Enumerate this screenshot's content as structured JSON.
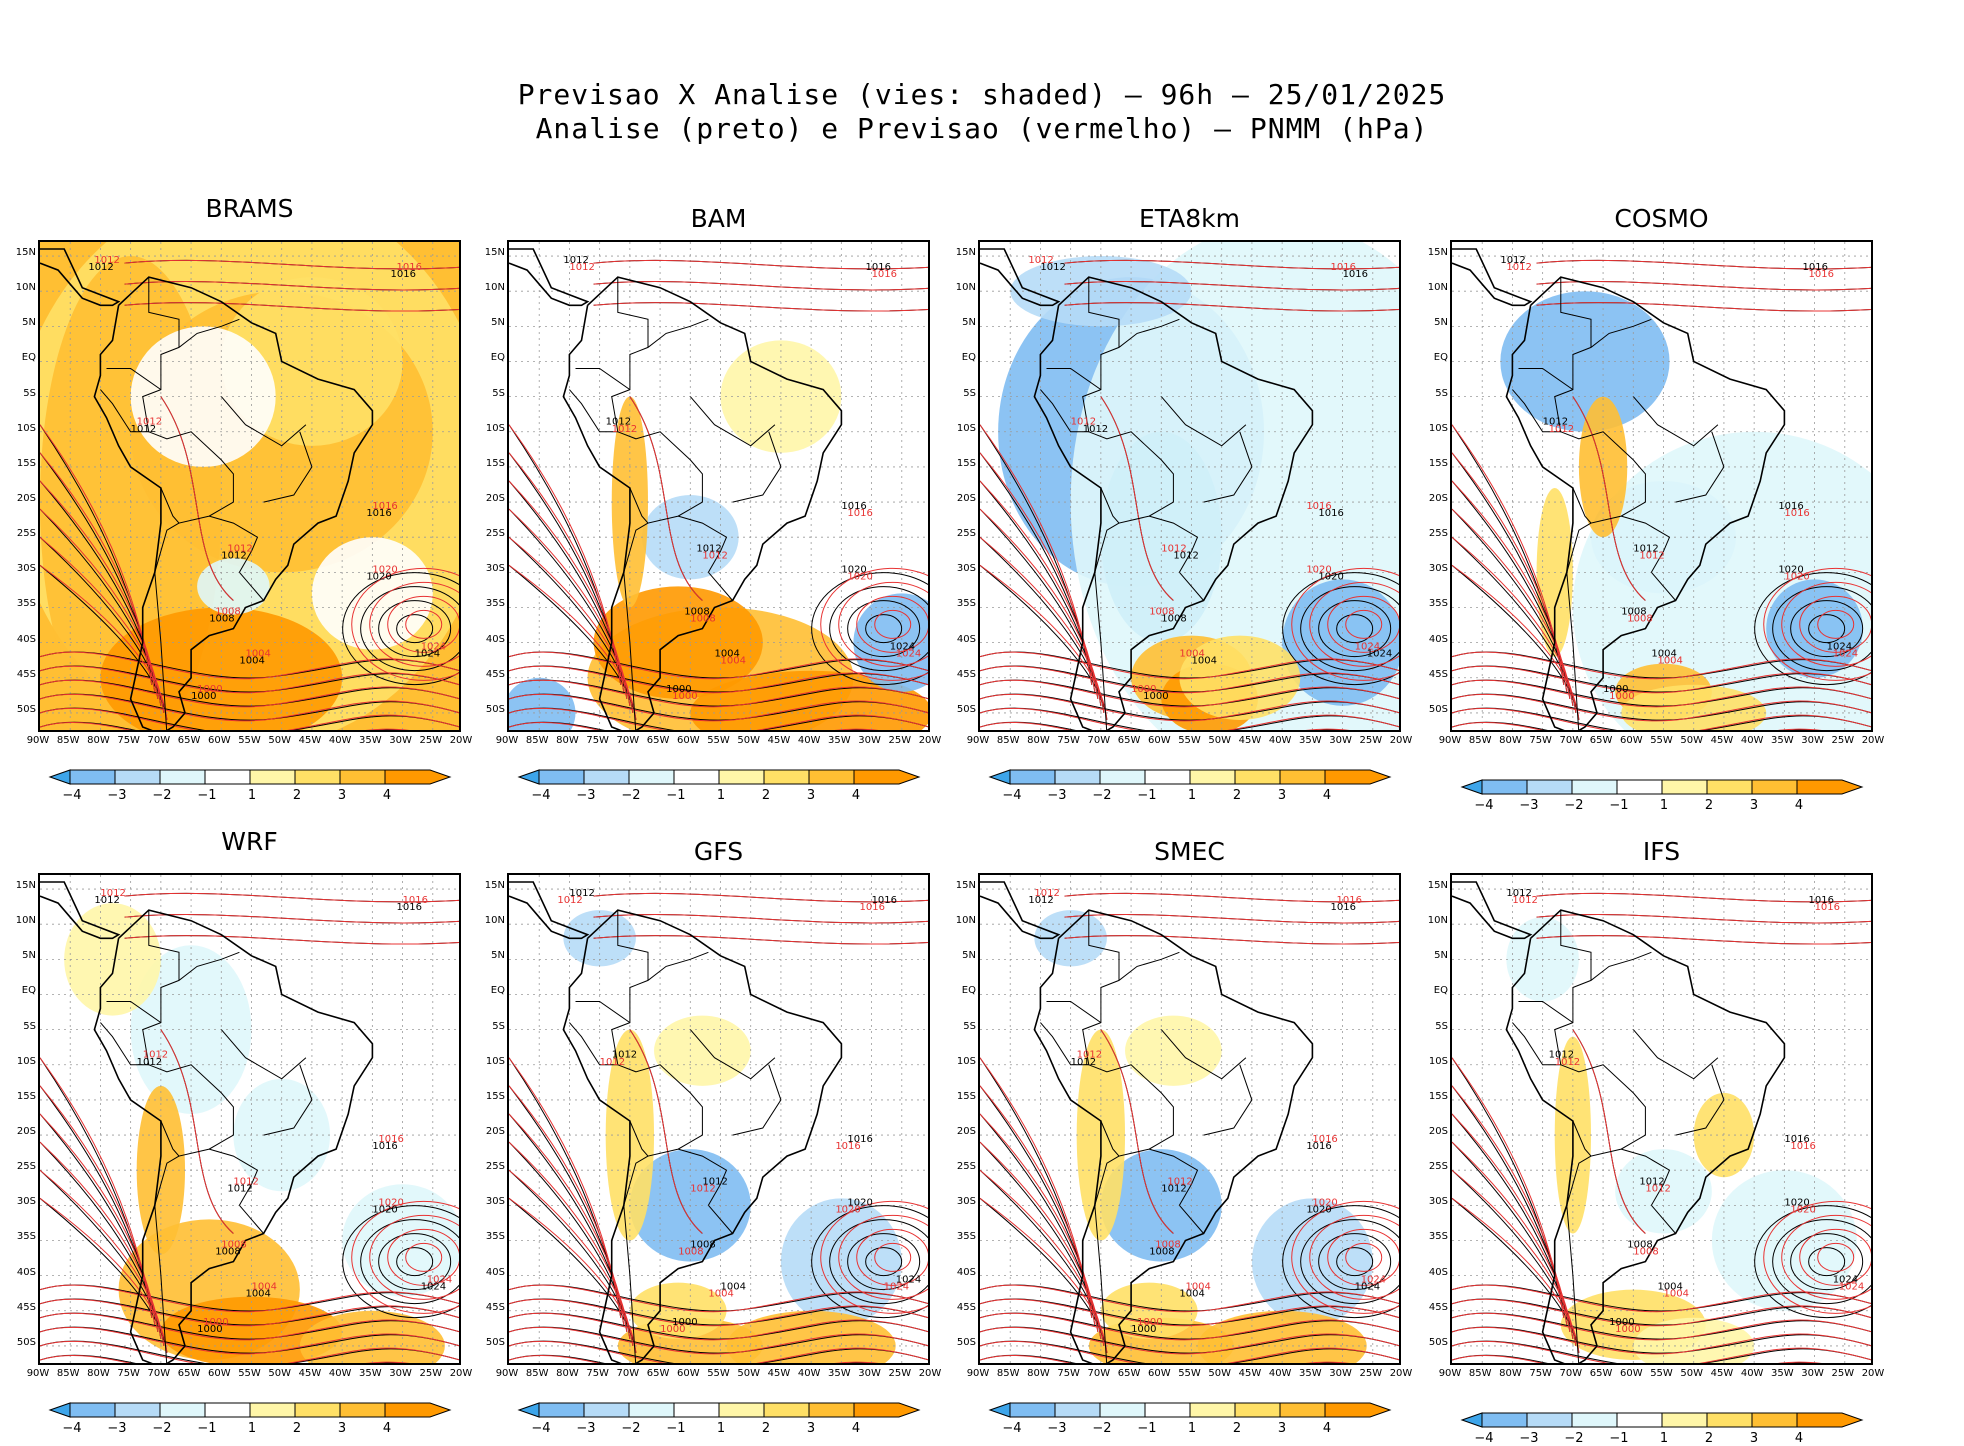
{
  "title": {
    "line1": "Previsao X Analise (vies: shaded) – 96h – 25/01/2025",
    "line2": "Analise (preto) e Previsao (vermelho) – PNMM (hPa)"
  },
  "panels": [
    {
      "name": "BRAMS",
      "bias": "warm-strong"
    },
    {
      "name": "BAM",
      "bias": "warm-south"
    },
    {
      "name": "ETA8km",
      "bias": "cold"
    },
    {
      "name": "COSMO",
      "bias": "cold-mixed"
    },
    {
      "name": "WRF",
      "bias": "warm-mixed"
    },
    {
      "name": "GFS",
      "bias": "mixed"
    },
    {
      "name": "SMEC",
      "bias": "mixed"
    },
    {
      "name": "IFS",
      "bias": "mixed-weak"
    }
  ],
  "lat_labels": [
    "15N",
    "10N",
    "5N",
    "EQ",
    "5S",
    "10S",
    "15S",
    "20S",
    "25S",
    "30S",
    "35S",
    "40S",
    "45S",
    "50S"
  ],
  "lon_labels": [
    "90W",
    "85W",
    "80W",
    "75W",
    "70W",
    "65W",
    "60W",
    "55W",
    "50W",
    "45W",
    "40W",
    "35W",
    "30W",
    "25W",
    "20W"
  ],
  "colorbar": {
    "labels": [
      "−4",
      "−3",
      "−2",
      "−1",
      "1",
      "2",
      "3",
      "4"
    ],
    "colors": [
      "#3da5ea",
      "#7fbdf2",
      "#b6dbf7",
      "#dff7fb",
      "#ffffff",
      "#fff6a8",
      "#ffe066",
      "#ffbf33",
      "#ff9900"
    ]
  },
  "isobar_labels": [
    "1000",
    "1004",
    "1008",
    "1012",
    "1016",
    "1020",
    "1024"
  ],
  "colors": {
    "analysis_line": "#000000",
    "forecast_line": "#e83333",
    "grid": "#9a9a9a",
    "coast": "#000000"
  }
}
